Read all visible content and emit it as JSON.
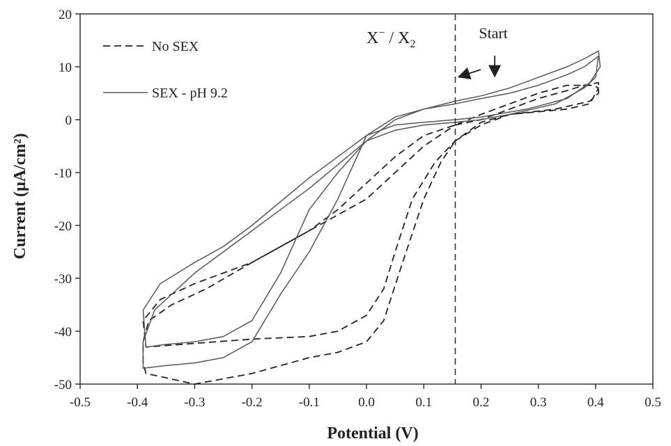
{
  "chart_data": {
    "type": "line",
    "title": "",
    "xlabel": "Potential (V)",
    "ylabel": "Current (µA/cm²)",
    "xlim": [
      -0.5,
      0.5
    ],
    "ylim": [
      -50,
      20
    ],
    "x_ticks": [
      -0.5,
      -0.4,
      -0.3,
      -0.2,
      -0.1,
      0.0,
      0.1,
      0.2,
      0.3,
      0.4,
      0.5
    ],
    "x_tick_labels": [
      "-0.5",
      "-0.4",
      "-0.3",
      "-0.2",
      "-0.1",
      "0.0",
      "0.1",
      "0.2",
      "0.3",
      "0.4",
      "0.5"
    ],
    "y_ticks": [
      -50,
      -40,
      -30,
      -20,
      -10,
      0,
      10,
      20
    ],
    "y_tick_labels": [
      "-50",
      "-40",
      "-30",
      "-20",
      "-10",
      "0",
      "10",
      "20"
    ],
    "grid": false,
    "legend_position": "top-left",
    "series": [
      {
        "name": "No SEX",
        "style": "dashed",
        "color": "#222222",
        "cycles": [
          [
            [
              0.155,
              -1
            ],
            [
              0.2,
              0
            ],
            [
              0.25,
              2
            ],
            [
              0.3,
              4
            ],
            [
              0.35,
              5.5
            ],
            [
              0.38,
              6.5
            ],
            [
              0.405,
              7
            ],
            [
              0.405,
              5
            ],
            [
              0.39,
              3.5
            ],
            [
              0.33,
              2
            ],
            [
              0.25,
              1
            ],
            [
              0.2,
              -0.5
            ],
            [
              0.155,
              -4
            ],
            [
              0.12,
              -8
            ],
            [
              0.08,
              -15
            ],
            [
              0.05,
              -25
            ],
            [
              0.03,
              -32
            ],
            [
              0.0,
              -37
            ],
            [
              -0.05,
              -40
            ],
            [
              -0.1,
              -41
            ],
            [
              -0.2,
              -41.5
            ],
            [
              -0.3,
              -42.3
            ],
            [
              -0.385,
              -43
            ],
            [
              -0.39,
              -38
            ],
            [
              -0.36,
              -34
            ],
            [
              -0.3,
              -31
            ],
            [
              -0.2,
              -27
            ],
            [
              -0.1,
              -21
            ],
            [
              0.0,
              -15
            ],
            [
              0.05,
              -10
            ],
            [
              0.1,
              -5
            ],
            [
              0.155,
              -1
            ]
          ],
          [
            [
              0.155,
              -4
            ],
            [
              0.2,
              -1
            ],
            [
              0.25,
              1
            ],
            [
              0.3,
              1.5
            ],
            [
              0.35,
              2
            ],
            [
              0.39,
              3
            ],
            [
              0.405,
              6
            ],
            [
              0.395,
              6.5
            ],
            [
              0.35,
              6.5
            ],
            [
              0.3,
              5
            ],
            [
              0.25,
              3
            ],
            [
              0.2,
              1
            ],
            [
              0.155,
              -1
            ],
            [
              0.1,
              -3
            ],
            [
              0.05,
              -7
            ],
            [
              0.0,
              -12
            ],
            [
              -0.05,
              -17
            ],
            [
              -0.1,
              -21
            ],
            [
              -0.2,
              -27
            ],
            [
              -0.28,
              -32
            ],
            [
              -0.34,
              -35
            ],
            [
              -0.38,
              -38
            ],
            [
              -0.39,
              -42
            ],
            [
              -0.39,
              -46
            ],
            [
              -0.385,
              -48
            ],
            [
              -0.3,
              -50
            ],
            [
              -0.2,
              -48
            ],
            [
              -0.1,
              -45
            ],
            [
              -0.05,
              -44
            ],
            [
              0.0,
              -42
            ],
            [
              0.03,
              -38
            ],
            [
              0.06,
              -28
            ],
            [
              0.1,
              -15
            ],
            [
              0.13,
              -8
            ],
            [
              0.155,
              -4
            ]
          ]
        ]
      },
      {
        "name": "SEX - pH 9.2",
        "style": "solid",
        "color": "#555555",
        "cycles": [
          [
            [
              0.155,
              3
            ],
            [
              0.2,
              4
            ],
            [
              0.25,
              5
            ],
            [
              0.3,
              6.5
            ],
            [
              0.35,
              8.5
            ],
            [
              0.38,
              10
            ],
            [
              0.405,
              12
            ],
            [
              0.4,
              8
            ],
            [
              0.38,
              6
            ],
            [
              0.33,
              3
            ],
            [
              0.25,
              1
            ],
            [
              0.2,
              0
            ],
            [
              0.155,
              -0.5
            ],
            [
              0.1,
              -1
            ],
            [
              0.05,
              -2
            ],
            [
              0.0,
              -4
            ],
            [
              -0.05,
              -10
            ],
            [
              -0.1,
              -17
            ],
            [
              -0.15,
              -29
            ],
            [
              -0.2,
              -38
            ],
            [
              -0.25,
              -41
            ],
            [
              -0.3,
              -42
            ],
            [
              -0.35,
              -42.5
            ],
            [
              -0.385,
              -43
            ],
            [
              -0.39,
              -36
            ],
            [
              -0.36,
              -31
            ],
            [
              -0.3,
              -27
            ],
            [
              -0.25,
              -24
            ],
            [
              -0.2,
              -20
            ],
            [
              -0.1,
              -11
            ],
            [
              0.0,
              -3
            ],
            [
              0.05,
              0.5
            ],
            [
              0.1,
              2
            ],
            [
              0.155,
              3
            ]
          ],
          [
            [
              0.155,
              3.5
            ],
            [
              0.2,
              4.5
            ],
            [
              0.25,
              6
            ],
            [
              0.3,
              8
            ],
            [
              0.35,
              10
            ],
            [
              0.38,
              11.5
            ],
            [
              0.405,
              13
            ],
            [
              0.408,
              10
            ],
            [
              0.39,
              7
            ],
            [
              0.35,
              4
            ],
            [
              0.28,
              2
            ],
            [
              0.2,
              0.5
            ],
            [
              0.155,
              0
            ],
            [
              0.1,
              -0.5
            ],
            [
              0.05,
              -1
            ],
            [
              0.0,
              -3
            ],
            [
              -0.05,
              -15
            ],
            [
              -0.1,
              -25
            ],
            [
              -0.15,
              -33
            ],
            [
              -0.2,
              -42
            ],
            [
              -0.25,
              -45
            ],
            [
              -0.3,
              -46
            ],
            [
              -0.35,
              -46.5
            ],
            [
              -0.39,
              -47
            ],
            [
              -0.39,
              -42
            ],
            [
              -0.37,
              -36
            ],
            [
              -0.3,
              -29
            ],
            [
              -0.25,
              -25
            ],
            [
              -0.2,
              -21
            ],
            [
              -0.1,
              -13
            ],
            [
              0.0,
              -4
            ],
            [
              0.05,
              0
            ],
            [
              0.1,
              2
            ],
            [
              0.155,
              3.5
            ]
          ]
        ]
      }
    ],
    "reference_line": {
      "x": 0.155,
      "style": "dashed"
    },
    "annotations": {
      "couple_main": "X",
      "couple_sup": "−",
      "couple_mid": " / X",
      "couple_sub": "2",
      "start": "Start"
    },
    "legend": [
      {
        "label": "No SEX",
        "style": "dashed"
      },
      {
        "label": "SEX - pH 9.2",
        "style": "solid"
      }
    ]
  }
}
